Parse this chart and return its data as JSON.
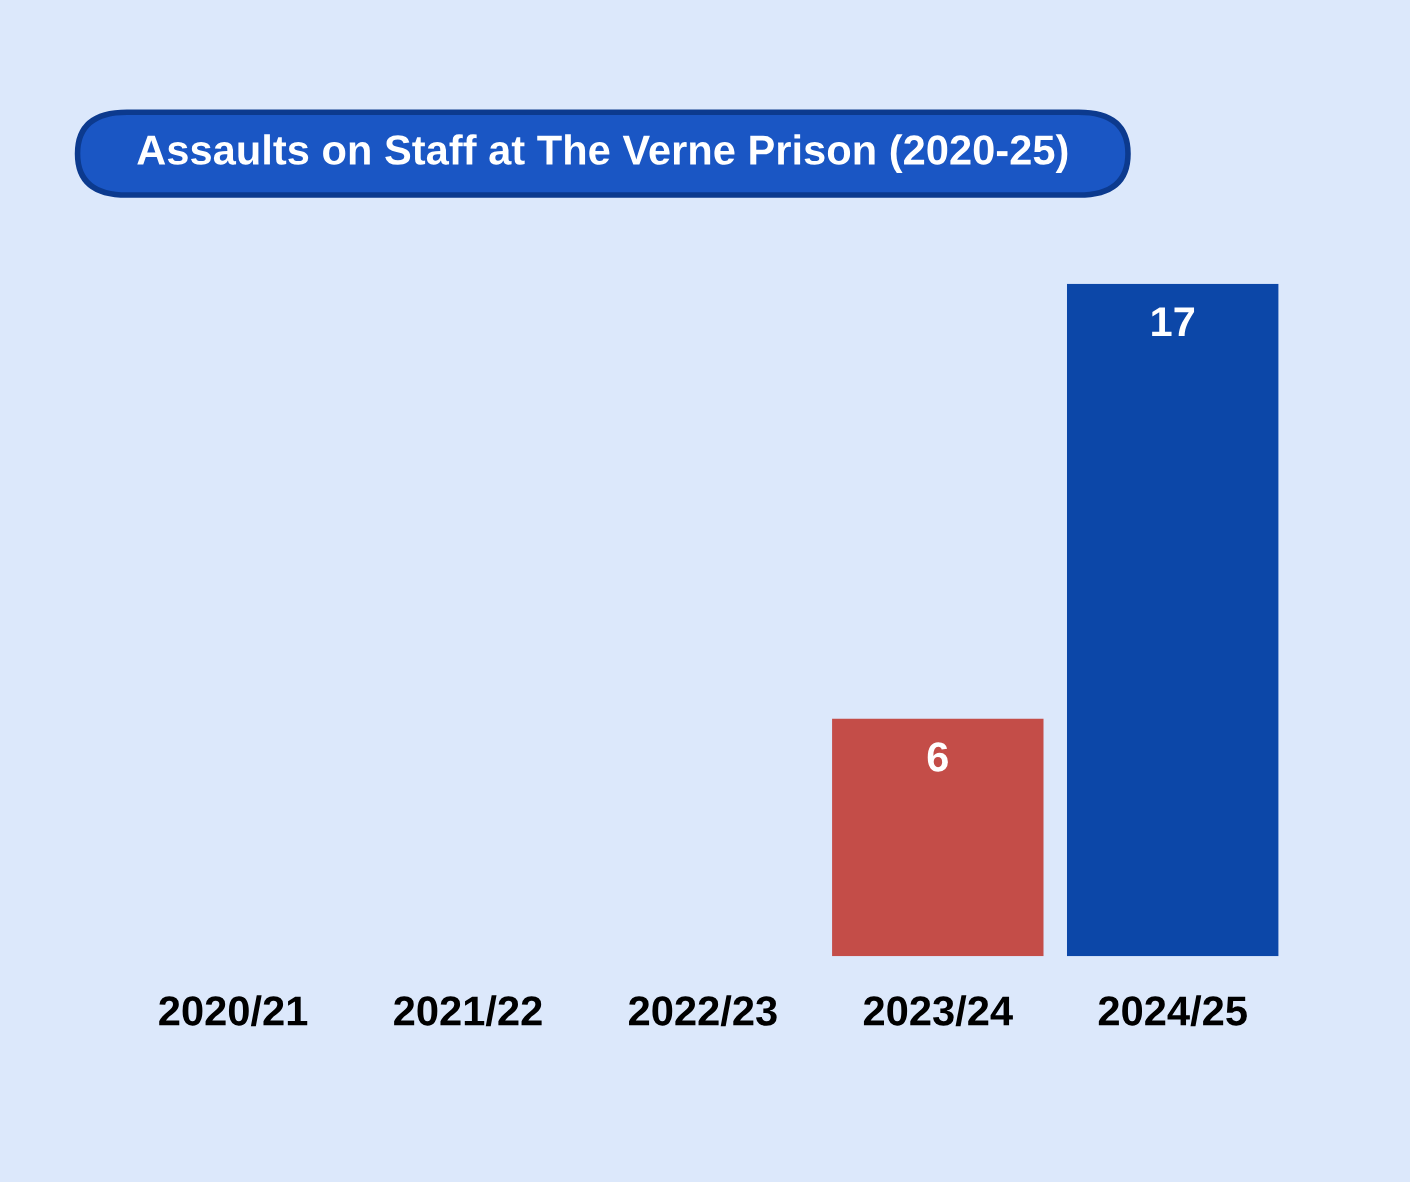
{
  "chart_data": {
    "type": "bar",
    "title": "Assaults on Staff at The Verne Prison (2020-25)",
    "categories": [
      "2020/21",
      "2021/22",
      "2022/23",
      "2023/24",
      "2024/25"
    ],
    "values": [
      null,
      null,
      null,
      6,
      17
    ],
    "colors": [
      "#c44d48",
      "#0c47a8",
      "#c44d48",
      "#c44d48",
      "#0c47a8"
    ],
    "data_labels": true,
    "grid": false,
    "legend": false
  }
}
